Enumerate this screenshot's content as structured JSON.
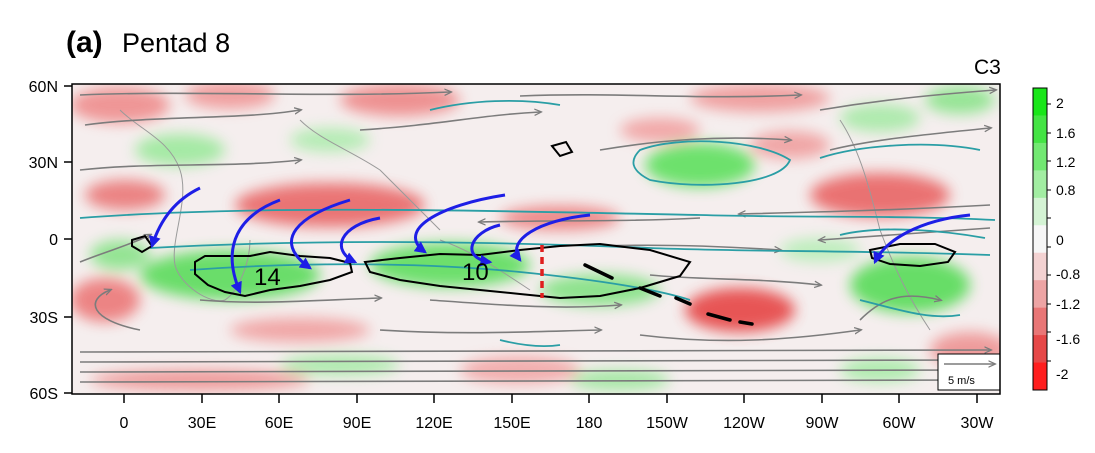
{
  "figure": {
    "panel_label": "(a)",
    "title": "Pentad 8",
    "code": "C3"
  },
  "axes": {
    "lat_labels": [
      "60N",
      "30N",
      "0",
      "30S",
      "60S"
    ],
    "lon_labels": [
      "0",
      "30E",
      "60E",
      "90E",
      "120E",
      "150E",
      "180",
      "150W",
      "120W",
      "90W",
      "60W",
      "30W"
    ]
  },
  "colorbar": {
    "labels": [
      "2",
      "1.6",
      "1.2",
      "0.8",
      "0",
      "-0.8",
      "-1.2",
      "-1.6",
      "-2"
    ],
    "colors": [
      "#19e619",
      "#44e444",
      "#72e872",
      "#a2eda2",
      "#d4f3d4",
      "#f6f6f6",
      "#f3d2d2",
      "#eda4a4",
      "#e97676",
      "#e64848",
      "#ff1e1e"
    ]
  },
  "annotations": {
    "region_a_label": "14",
    "region_b_label": "10",
    "scale_label": "5 m/s"
  },
  "colors": {
    "arrow": "#1e1ee6",
    "streamline": "#7c7c7c",
    "contour_teal": "#2a9ea5",
    "outline": "#000000",
    "marker": "#e01e1e"
  }
}
